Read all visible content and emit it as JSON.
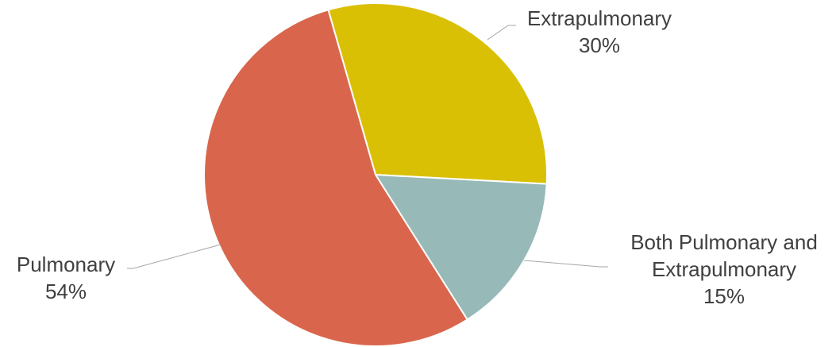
{
  "chart_data": {
    "type": "pie",
    "title": "",
    "slices": [
      {
        "label": "Extrapulmonary",
        "label_lines": [
          "Extrapulmonary"
        ],
        "value": 30,
        "value_label": "30%",
        "color": "#d9c004"
      },
      {
        "label": "Both Pulmonary and Extrapulmonary",
        "label_lines": [
          "Both Pulmonary and",
          "Extrapulmonary"
        ],
        "value": 15,
        "value_label": "15%",
        "color": "#97b9b8"
      },
      {
        "label": "Pulmonary",
        "label_lines": [
          "Pulmonary"
        ],
        "value": 54,
        "value_label": "54%",
        "color": "#d9664c"
      }
    ],
    "legend": "none"
  },
  "colors": {
    "label_text": "#404040",
    "leader_line": "#a6a6a6",
    "slice_border": "#ffffff"
  }
}
